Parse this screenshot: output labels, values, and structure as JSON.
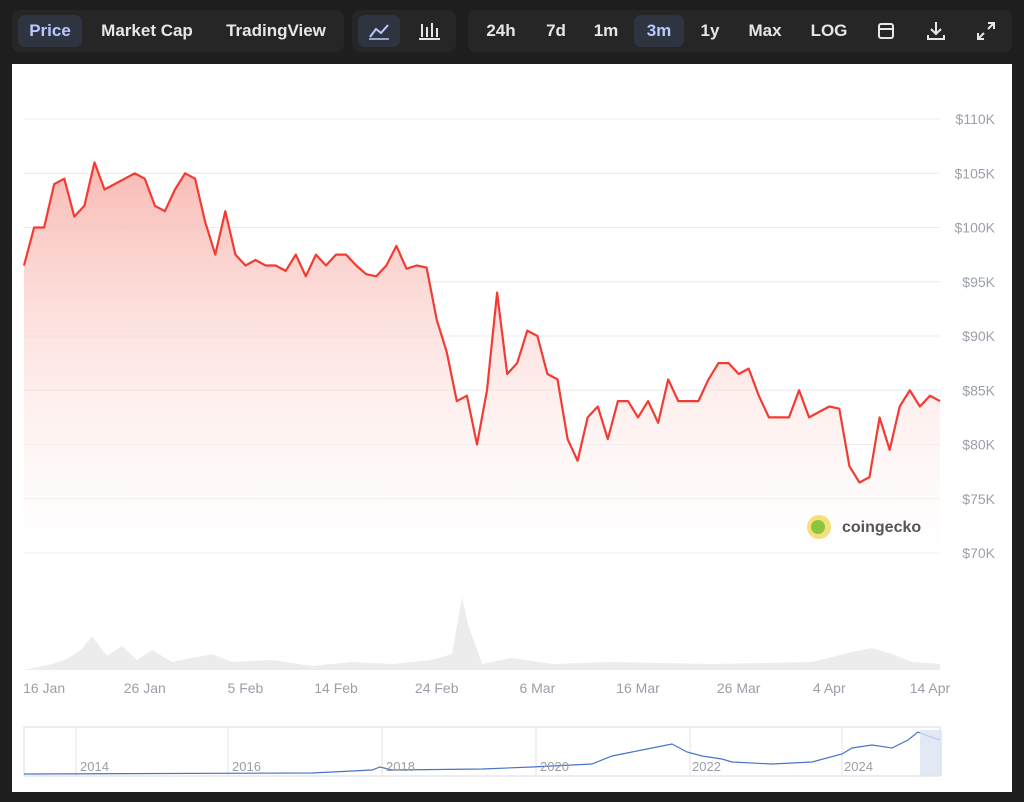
{
  "toolbar": {
    "tabs": [
      "Price",
      "Market Cap",
      "TradingView"
    ],
    "ranges": [
      "24h",
      "7d",
      "1m",
      "3m",
      "1y",
      "Max",
      "LOG"
    ]
  },
  "watermark": "coingecko",
  "navigator": {
    "labels": [
      "2014",
      "2016",
      "2018",
      "2020",
      "2022",
      "2024"
    ]
  },
  "chart_data": {
    "type": "line",
    "color": "#f23c33",
    "grid": true,
    "categories": [
      null,
      null,
      "16 Jan",
      null,
      null,
      null,
      null,
      null,
      null,
      null,
      null,
      null,
      "26 Jan",
      null,
      null,
      null,
      null,
      null,
      null,
      null,
      null,
      null,
      "5 Feb",
      null,
      null,
      null,
      null,
      null,
      null,
      null,
      null,
      "14 Feb",
      null,
      null,
      null,
      null,
      null,
      null,
      null,
      null,
      null,
      "24 Feb",
      null,
      null,
      null,
      null,
      null,
      null,
      null,
      null,
      null,
      "6 Mar",
      null,
      null,
      null,
      null,
      null,
      null,
      null,
      null,
      null,
      "16 Mar",
      null,
      null,
      null,
      null,
      null,
      null,
      null,
      null,
      null,
      "26 Mar",
      null,
      null,
      null,
      null,
      null,
      null,
      null,
      null,
      "4 Apr",
      null,
      null,
      null,
      null,
      null,
      null,
      null,
      null,
      null,
      "14 Apr",
      null
    ],
    "values": [
      96500,
      100000,
      100000,
      104000,
      104500,
      101000,
      102000,
      106000,
      103500,
      104000,
      104500,
      105000,
      104500,
      102000,
      101500,
      103500,
      105000,
      104500,
      100500,
      97500,
      101500,
      97500,
      96500,
      97000,
      96500,
      96500,
      96000,
      97500,
      95500,
      97500,
      96500,
      97500,
      97500,
      96500,
      95700,
      95500,
      96500,
      98300,
      96200,
      96500,
      96300,
      91500,
      88500,
      84000,
      84500,
      80000,
      85000,
      94000,
      86500,
      87500,
      90500,
      90000,
      86500,
      86000,
      80500,
      78500,
      82500,
      83500,
      80500,
      84000,
      84000,
      82500,
      84000,
      82000,
      86000,
      84000,
      84000,
      84000,
      86000,
      87500,
      87500,
      86500,
      87000,
      84500,
      82500,
      82500,
      82500,
      85000,
      82500,
      83000,
      83500,
      83300,
      78000,
      76500,
      77000,
      82500,
      79500,
      83500,
      85000,
      83500,
      84500,
      84000
    ],
    "ylim": [
      70000,
      110000
    ],
    "yticks": [
      {
        "value": 70000,
        "label": "$70K"
      },
      {
        "value": 75000,
        "label": "$75K"
      },
      {
        "value": 80000,
        "label": "$80K"
      },
      {
        "value": 85000,
        "label": "$85K"
      },
      {
        "value": 90000,
        "label": "$90K"
      },
      {
        "value": 95000,
        "label": "$95K"
      },
      {
        "value": 100000,
        "label": "$100K"
      },
      {
        "value": 105000,
        "label": "$105K"
      },
      {
        "value": 110000,
        "label": "$110K"
      }
    ]
  }
}
